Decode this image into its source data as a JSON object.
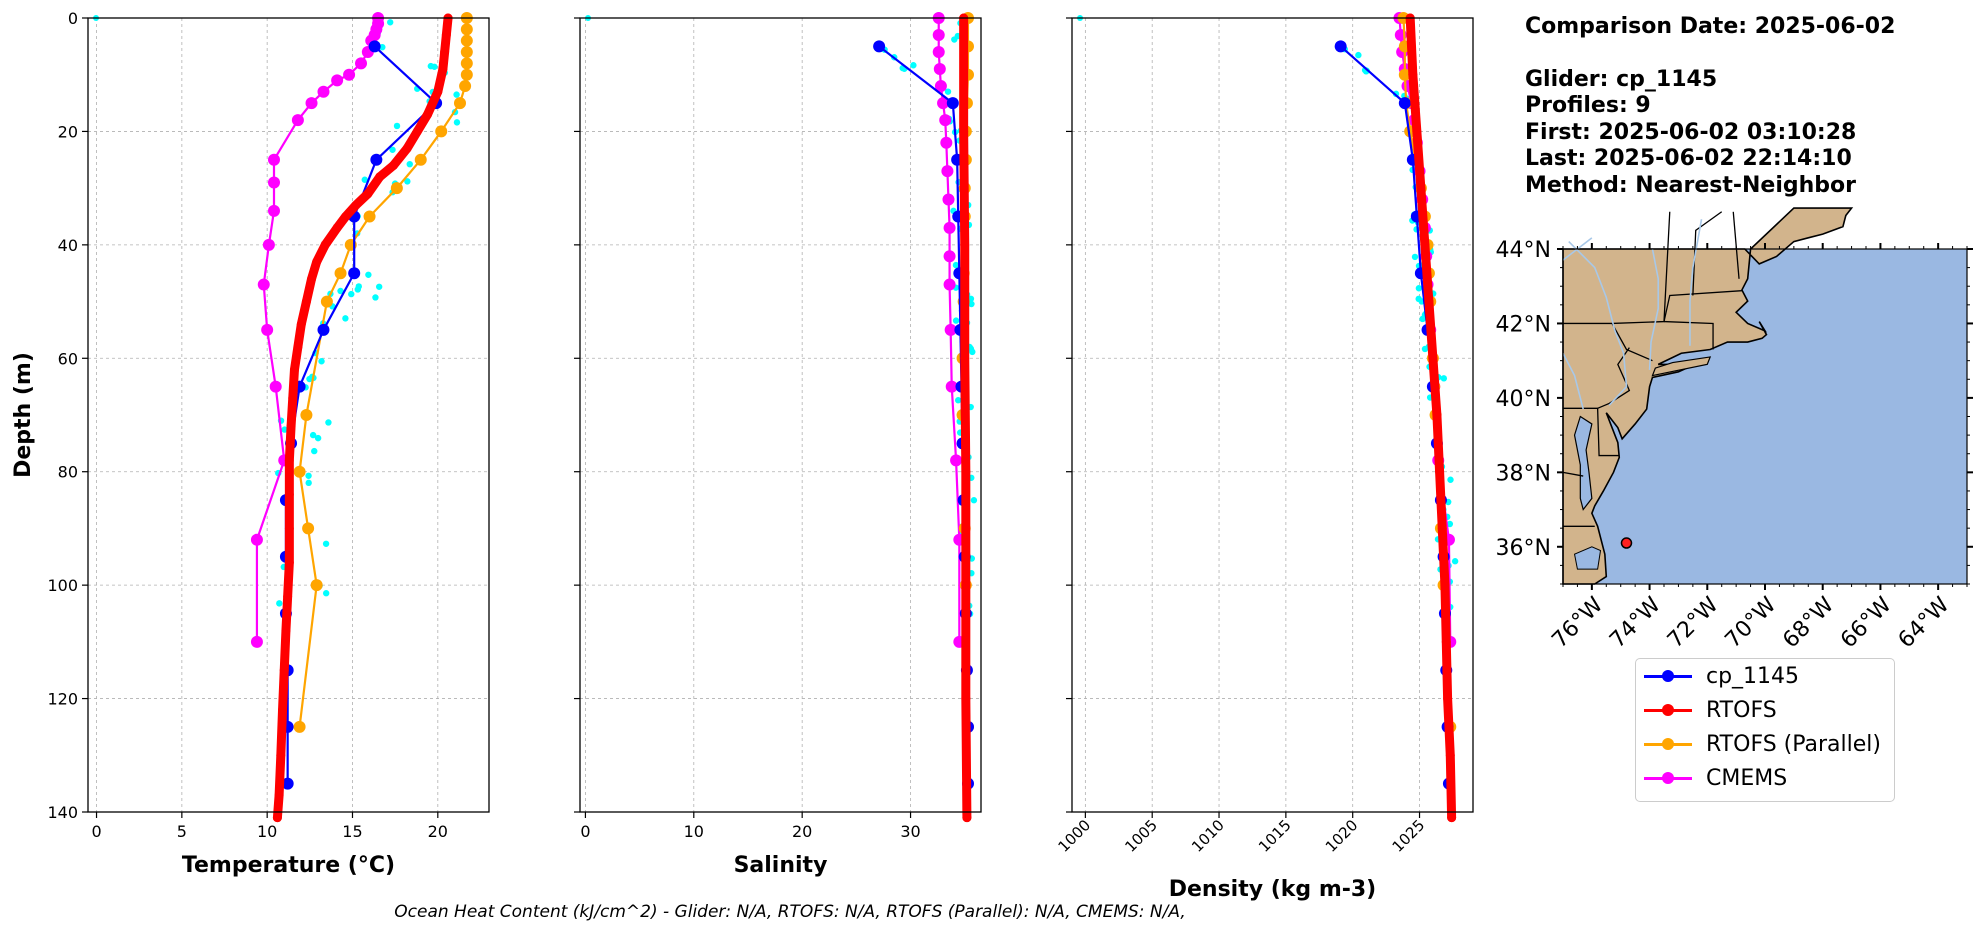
{
  "info": {
    "comparison": "Comparison Date: 2025-06-02",
    "glider": "Glider: cp_1145",
    "profiles": "Profiles: 9",
    "first": "First: 2025-06-02 03:10:28",
    "last": "Last: 2025-06-02 22:14:10",
    "method": "Method: Nearest-Neighbor"
  },
  "footer": "Ocean Heat Content (kJ/cm^2) - Glider: N/A,  RTOFS: N/A,  RTOFS (Parallel): N/A,  CMEMS: N/A,",
  "colors": {
    "glider": "#0000ff",
    "rtofs": "#ff0000",
    "parallel": "#ffa500",
    "cmems": "#ff00ff",
    "raw": "#00ffff",
    "land": "#d2b48c",
    "ocean": "#9ab8e2",
    "rivers": "#a8c8e8"
  },
  "legend": [
    {
      "label": "cp_1145",
      "color": "#0000ff"
    },
    {
      "label": "RTOFS",
      "color": "#ff0000"
    },
    {
      "label": "RTOFS (Parallel)",
      "color": "#ffa500"
    },
    {
      "label": "CMEMS",
      "color": "#ff00ff"
    }
  ],
  "chart_data": [
    {
      "type": "line",
      "panel": "temperature",
      "xlabel": "Temperature (°C)",
      "ylabel": "Depth (m)",
      "xlim": [
        -0.5,
        23
      ],
      "ylim": [
        140,
        0
      ],
      "xticks": [
        0,
        5,
        10,
        15,
        20
      ],
      "yticks": [
        0,
        20,
        40,
        60,
        80,
        100,
        120,
        140
      ],
      "grid": true,
      "series": [
        {
          "name": "cp_1145",
          "color": "#0000ff",
          "points": [
            [
              16.3,
              5
            ],
            [
              19.9,
              15
            ],
            [
              16.4,
              25
            ],
            [
              15.1,
              35
            ],
            [
              15.1,
              45
            ],
            [
              13.3,
              55
            ],
            [
              11.9,
              65
            ],
            [
              11.4,
              75
            ],
            [
              11.1,
              85
            ],
            [
              11.1,
              95
            ],
            [
              11.1,
              105
            ],
            [
              11.2,
              115
            ],
            [
              11.2,
              125
            ],
            [
              11.2,
              135
            ]
          ]
        },
        {
          "name": "RTOFS",
          "color": "#ff0000",
          "points": [
            [
              20.6,
              0
            ],
            [
              20.5,
              3
            ],
            [
              20.4,
              6
            ],
            [
              20.3,
              9
            ],
            [
              20.0,
              13
            ],
            [
              19.4,
              17
            ],
            [
              18.8,
              20
            ],
            [
              18.2,
              23
            ],
            [
              17.4,
              26
            ],
            [
              16.6,
              28
            ],
            [
              15.9,
              31
            ],
            [
              15.2,
              33
            ],
            [
              14.6,
              35
            ],
            [
              14.1,
              37
            ],
            [
              13.4,
              40
            ],
            [
              12.9,
              43
            ],
            [
              12.6,
              46
            ],
            [
              12.3,
              50
            ],
            [
              12.0,
              54
            ],
            [
              11.8,
              58
            ],
            [
              11.6,
              62
            ],
            [
              11.5,
              67
            ],
            [
              11.4,
              72
            ],
            [
              11.3,
              78
            ],
            [
              11.3,
              84
            ],
            [
              11.3,
              90
            ],
            [
              11.3,
              96
            ],
            [
              11.2,
              102
            ],
            [
              11.1,
              108
            ],
            [
              11.0,
              115
            ],
            [
              10.9,
              122
            ],
            [
              10.8,
              130
            ],
            [
              10.7,
              137
            ],
            [
              10.6,
              141
            ]
          ]
        },
        {
          "name": "RTOFS (Parallel)",
          "color": "#ffa500",
          "points": [
            [
              21.7,
              0
            ],
            [
              21.7,
              2
            ],
            [
              21.7,
              4
            ],
            [
              21.7,
              6
            ],
            [
              21.7,
              8
            ],
            [
              21.7,
              10
            ],
            [
              21.6,
              12
            ],
            [
              21.3,
              15
            ],
            [
              20.2,
              20
            ],
            [
              19.0,
              25
            ],
            [
              17.6,
              30
            ],
            [
              16.0,
              35
            ],
            [
              14.9,
              40
            ],
            [
              14.3,
              45
            ],
            [
              13.5,
              50
            ],
            [
              12.3,
              70
            ],
            [
              11.9,
              80
            ],
            [
              12.4,
              90
            ],
            [
              12.9,
              100
            ],
            [
              11.9,
              125
            ]
          ]
        },
        {
          "name": "CMEMS",
          "color": "#ff00ff",
          "points": [
            [
              16.5,
              0
            ],
            [
              16.5,
              1
            ],
            [
              16.4,
              2
            ],
            [
              16.3,
              3
            ],
            [
              16.1,
              4
            ],
            [
              15.9,
              6
            ],
            [
              15.5,
              8
            ],
            [
              14.8,
              10
            ],
            [
              14.1,
              11
            ],
            [
              13.3,
              13
            ],
            [
              12.6,
              15
            ],
            [
              11.8,
              18
            ],
            [
              10.4,
              25
            ],
            [
              10.4,
              29
            ],
            [
              10.4,
              34
            ],
            [
              10.1,
              40
            ],
            [
              9.8,
              47
            ],
            [
              10.0,
              55
            ],
            [
              10.5,
              65
            ],
            [
              11.0,
              78
            ],
            [
              9.4,
              92
            ],
            [
              9.4,
              110
            ]
          ]
        }
      ]
    },
    {
      "type": "line",
      "panel": "salinity",
      "xlabel": "Salinity",
      "ylim": [
        140,
        0
      ],
      "xlim": [
        -0.5,
        36.5
      ],
      "xticks": [
        0,
        10,
        20,
        30
      ],
      "yticks": [
        0,
        20,
        40,
        60,
        80,
        100,
        120,
        140
      ],
      "grid": true,
      "series": [
        {
          "name": "cp_1145",
          "color": "#0000ff",
          "points": [
            [
              27.1,
              5
            ],
            [
              33.9,
              15
            ],
            [
              34.3,
              25
            ],
            [
              34.4,
              35
            ],
            [
              34.5,
              45
            ],
            [
              34.6,
              55
            ],
            [
              34.7,
              65
            ],
            [
              34.8,
              75
            ],
            [
              34.9,
              85
            ],
            [
              35.0,
              95
            ],
            [
              35.1,
              105
            ],
            [
              35.2,
              115
            ],
            [
              35.3,
              125
            ],
            [
              35.3,
              135
            ]
          ]
        },
        {
          "name": "RTOFS",
          "color": "#ff0000",
          "points": [
            [
              34.9,
              0
            ],
            [
              34.9,
              20
            ],
            [
              35.0,
              40
            ],
            [
              35.0,
              60
            ],
            [
              35.1,
              80
            ],
            [
              35.1,
              100
            ],
            [
              35.1,
              120
            ],
            [
              35.2,
              141
            ]
          ]
        },
        {
          "name": "RTOFS (Parallel)",
          "color": "#ffa500",
          "points": [
            [
              35.3,
              0
            ],
            [
              35.3,
              5
            ],
            [
              35.3,
              10
            ],
            [
              35.2,
              15
            ],
            [
              35.1,
              20
            ],
            [
              35.1,
              25
            ],
            [
              35.0,
              30
            ],
            [
              35.0,
              35
            ],
            [
              34.9,
              45
            ],
            [
              34.9,
              50
            ],
            [
              34.8,
              55
            ],
            [
              34.8,
              60
            ],
            [
              34.8,
              65
            ],
            [
              34.8,
              70
            ],
            [
              35.0,
              90
            ],
            [
              35.1,
              100
            ],
            [
              35.3,
              125
            ]
          ]
        },
        {
          "name": "CMEMS",
          "color": "#ff00ff",
          "points": [
            [
              32.6,
              0
            ],
            [
              32.6,
              3
            ],
            [
              32.6,
              6
            ],
            [
              32.7,
              9
            ],
            [
              32.8,
              12
            ],
            [
              33.0,
              15
            ],
            [
              33.2,
              18
            ],
            [
              33.3,
              22
            ],
            [
              33.4,
              27
            ],
            [
              33.5,
              32
            ],
            [
              33.6,
              37
            ],
            [
              33.6,
              42
            ],
            [
              33.6,
              47
            ],
            [
              33.7,
              55
            ],
            [
              33.8,
              65
            ],
            [
              34.2,
              78
            ],
            [
              34.5,
              92
            ],
            [
              34.5,
              110
            ]
          ]
        }
      ]
    },
    {
      "type": "line",
      "panel": "density",
      "xlabel": "Density (kg m-3)",
      "ylim": [
        140,
        0
      ],
      "xlim": [
        999,
        1029
      ],
      "xticks": [
        1000,
        1005,
        1010,
        1015,
        1020,
        1025
      ],
      "yticks": [
        0,
        20,
        40,
        60,
        80,
        100,
        120,
        140
      ],
      "grid": true,
      "series": [
        {
          "name": "cp_1145",
          "color": "#0000ff",
          "points": [
            [
              1019.1,
              5
            ],
            [
              1023.9,
              15
            ],
            [
              1024.5,
              25
            ],
            [
              1024.8,
              35
            ],
            [
              1025.1,
              45
            ],
            [
              1025.6,
              55
            ],
            [
              1026.0,
              65
            ],
            [
              1026.3,
              75
            ],
            [
              1026.6,
              85
            ],
            [
              1026.8,
              95
            ],
            [
              1026.9,
              105
            ],
            [
              1027.0,
              115
            ],
            [
              1027.1,
              125
            ],
            [
              1027.2,
              135
            ]
          ]
        },
        {
          "name": "RTOFS",
          "color": "#ff0000",
          "points": [
            [
              1024.3,
              0
            ],
            [
              1024.5,
              10
            ],
            [
              1024.8,
              20
            ],
            [
              1025.1,
              30
            ],
            [
              1025.4,
              40
            ],
            [
              1025.7,
              50
            ],
            [
              1026.0,
              60
            ],
            [
              1026.3,
              70
            ],
            [
              1026.5,
              80
            ],
            [
              1026.7,
              90
            ],
            [
              1026.9,
              100
            ],
            [
              1027.0,
              110
            ],
            [
              1027.1,
              120
            ],
            [
              1027.3,
              130
            ],
            [
              1027.4,
              141
            ]
          ]
        },
        {
          "name": "RTOFS (Parallel)",
          "color": "#ffa500",
          "points": [
            [
              1023.8,
              0
            ],
            [
              1023.9,
              5
            ],
            [
              1023.9,
              10
            ],
            [
              1024.0,
              15
            ],
            [
              1024.3,
              20
            ],
            [
              1024.7,
              25
            ],
            [
              1025.1,
              30
            ],
            [
              1025.4,
              35
            ],
            [
              1025.6,
              40
            ],
            [
              1025.7,
              45
            ],
            [
              1025.8,
              50
            ],
            [
              1026.0,
              60
            ],
            [
              1026.1,
              65
            ],
            [
              1026.2,
              70
            ],
            [
              1026.6,
              90
            ],
            [
              1026.8,
              100
            ],
            [
              1027.3,
              125
            ]
          ]
        },
        {
          "name": "CMEMS",
          "color": "#ff00ff",
          "points": [
            [
              1023.5,
              0
            ],
            [
              1023.6,
              3
            ],
            [
              1023.7,
              6
            ],
            [
              1023.9,
              9
            ],
            [
              1024.1,
              12
            ],
            [
              1024.4,
              15
            ],
            [
              1024.6,
              18
            ],
            [
              1024.8,
              22
            ],
            [
              1025.0,
              27
            ],
            [
              1025.2,
              32
            ],
            [
              1025.4,
              37
            ],
            [
              1025.5,
              42
            ],
            [
              1025.6,
              47
            ],
            [
              1025.8,
              55
            ],
            [
              1026.1,
              65
            ],
            [
              1026.4,
              78
            ],
            [
              1027.2,
              92
            ],
            [
              1027.3,
              110
            ]
          ]
        }
      ]
    }
  ],
  "map": {
    "lat_ticks": [
      "44°N",
      "42°N",
      "40°N",
      "38°N",
      "36°N"
    ],
    "lon_ticks": [
      "76°W",
      "74°W",
      "72°W",
      "70°W",
      "68°W",
      "66°W",
      "64°W"
    ],
    "lon_range": [
      -77,
      -63
    ],
    "lat_range": [
      35,
      44
    ],
    "glider_position": {
      "lon": -74.8,
      "lat": 36.1
    }
  }
}
